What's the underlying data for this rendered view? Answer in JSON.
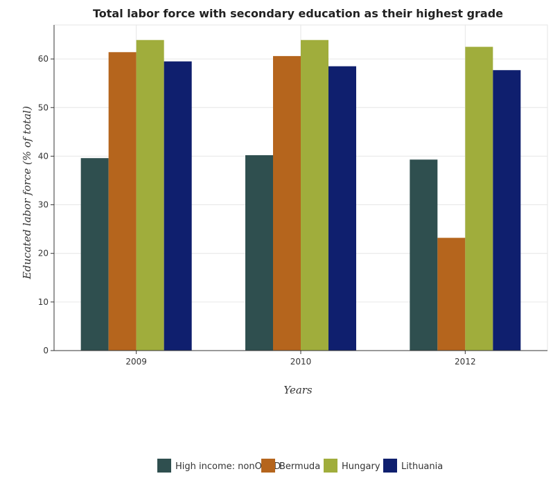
{
  "chart_data": {
    "type": "bar",
    "title": "Total labor force with secondary education as their highest grade",
    "xlabel": "Years",
    "ylabel": "Educated labor force (% of total)",
    "categories": [
      "2009",
      "2010",
      "2012"
    ],
    "ylim": [
      0,
      67
    ],
    "yticks": [
      0,
      10,
      20,
      30,
      40,
      50,
      60
    ],
    "grid": true,
    "legend_position": "bottom",
    "series": [
      {
        "name": "High income: nonOECD",
        "color": "#2f4f4f",
        "values": [
          39.6,
          40.2,
          39.3
        ]
      },
      {
        "name": "Bermuda",
        "color": "#b5651d",
        "values": [
          61.4,
          60.6,
          23.2
        ]
      },
      {
        "name": "Hungary",
        "color": "#a0ad3c",
        "values": [
          63.9,
          63.9,
          62.5
        ]
      },
      {
        "name": "Lithuania",
        "color": "#0f1f6e",
        "values": [
          59.5,
          58.5,
          57.7
        ]
      }
    ]
  }
}
